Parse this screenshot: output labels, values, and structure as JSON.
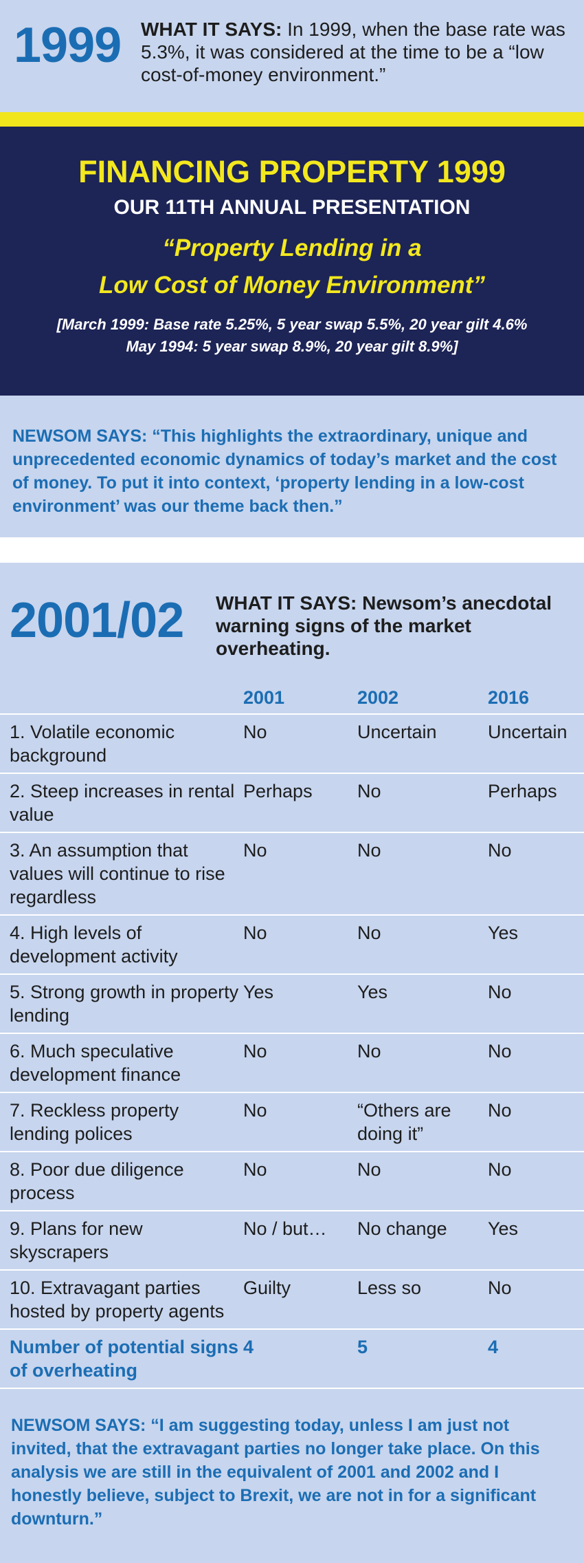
{
  "section_1999": {
    "year": "1999",
    "what_it_says_label": "WHAT IT SAYS:",
    "what_it_says_text": "In 1999, when the base rate was 5.3%, it was considered at the time to be a “low cost-of-money environment.”",
    "slide": {
      "title": "FINANCING PROPERTY 1999",
      "subtitle": "OUR 11TH ANNUAL PRESENTATION",
      "theme_line_1": "“Property Lending in a",
      "theme_line_2": "Low Cost of Money Environment”",
      "note_line_1": "[March 1999: Base rate 5.25%, 5 year swap 5.5%, 20 year gilt 4.6%",
      "note_line_2": "May 1994: 5 year swap 8.9%, 20 year gilt 8.9%]"
    },
    "newsom_says_label": "NEWSOM SAYS:",
    "newsom_says_text": "“This highlights the extraordinary, unique and unprecedented economic dynamics of today’s market and the cost of money. To put it into context, ‘property lending in a low-cost environment’ was our theme back then.”"
  },
  "section_2001_02": {
    "year": "2001/02",
    "what_it_says_label": "WHAT IT SAYS:",
    "what_it_says_text": "Newsom’s anecdotal warning signs of the market overheating.",
    "table": {
      "columns": [
        "2001",
        "2002",
        "2016"
      ],
      "rows": [
        {
          "label": "1. Volatile economic background",
          "values": [
            "No",
            "Uncertain",
            "Uncertain"
          ]
        },
        {
          "label": "2. Steep increases in rental value",
          "values": [
            "Perhaps",
            "No",
            "Perhaps"
          ]
        },
        {
          "label": "3. An assumption that values will continue to rise regardless",
          "values": [
            "No",
            "No",
            "No"
          ]
        },
        {
          "label": "4. High levels of development activity",
          "values": [
            "No",
            "No",
            "Yes"
          ]
        },
        {
          "label": "5. Strong growth in property lending",
          "values": [
            "Yes",
            "Yes",
            "No"
          ]
        },
        {
          "label": "6. Much speculative development finance",
          "values": [
            "No",
            "No",
            "No"
          ]
        },
        {
          "label": "7. Reckless property lending polices",
          "values": [
            "No",
            "“Others are doing it”",
            "No"
          ]
        },
        {
          "label": "8. Poor due diligence process",
          "values": [
            "No",
            "No",
            "No"
          ]
        },
        {
          "label": "9. Plans for new skyscrapers",
          "values": [
            "No / but…",
            "No change",
            "Yes"
          ]
        },
        {
          "label": "10. Extravagant parties hosted by property agents",
          "values": [
            "Guilty",
            "Less so",
            "No"
          ]
        }
      ],
      "total": {
        "label": "Number of potential signs of overheating",
        "values": [
          4,
          5,
          4
        ]
      }
    },
    "newsom_says_label": "NEWSOM SAYS:",
    "newsom_says_text": "“I am suggesting today, unless I am just not invited, that the extravagant parties no longer take place. On this analysis we are still in the equivalent of 2001 and 2002 and I honestly believe, subject to Brexit, we are not in for a significant downturn.”"
  }
}
